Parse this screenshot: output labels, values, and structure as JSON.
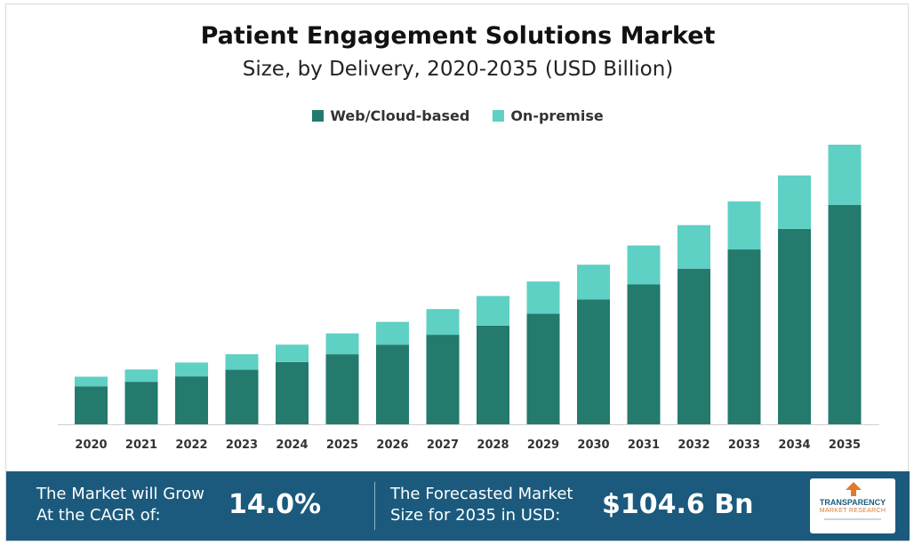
{
  "title": "Patient Engagement Solutions Market",
  "subtitle": "Size, by Delivery, 2020-2035 (USD Billion)",
  "colors": {
    "web": "#237a6d",
    "onprem": "#5ed0c4",
    "footer": "#1b5a7d"
  },
  "chart_data": {
    "type": "bar",
    "stacked": true,
    "categories": [
      "2020",
      "2021",
      "2022",
      "2023",
      "2024",
      "2025",
      "2026",
      "2027",
      "2028",
      "2029",
      "2030",
      "2031",
      "2032",
      "2033",
      "2034",
      "2035"
    ],
    "series": [
      {
        "name": "Web/Cloud-based",
        "values": [
          14.2,
          15.9,
          17.9,
          20.4,
          23.3,
          26.2,
          29.8,
          33.5,
          36.9,
          41.4,
          46.7,
          52.3,
          58.2,
          65.4,
          73.1,
          82.1
        ]
      },
      {
        "name": "On-premise",
        "values": [
          3.6,
          4.6,
          5.2,
          5.8,
          6.5,
          7.8,
          8.5,
          9.6,
          11.1,
          12.0,
          13.0,
          14.6,
          16.3,
          18.0,
          20.0,
          22.5
        ]
      }
    ],
    "legend_position": "top-center",
    "grid": false
  },
  "footer": {
    "cagr_text_line1": "The Market will Grow",
    "cagr_text_line2": "At the CAGR of:",
    "cagr_value": "14.0%",
    "forecast_text_line1": "The Forecasted Market",
    "forecast_text_line2": "Size for 2035 in USD:",
    "forecast_value": "$104.6 Bn",
    "logo_line1": "TRANSPARENCY",
    "logo_line2": "MARKET RESEARCH"
  }
}
